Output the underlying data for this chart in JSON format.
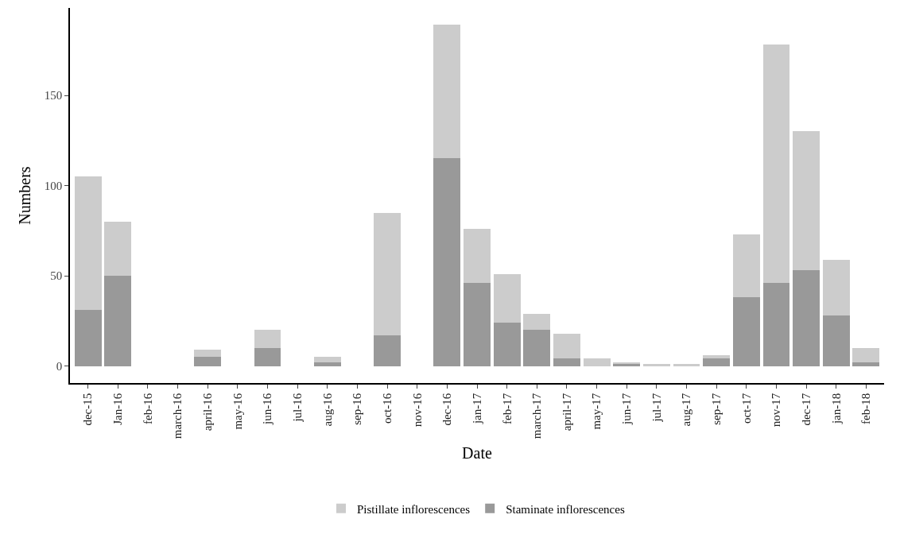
{
  "chart_data": {
    "type": "bar",
    "stacked": true,
    "xlabel": "Date",
    "ylabel": "Numbers",
    "categories": [
      "dec-15",
      "Jan-16",
      "feb-16",
      "march-16",
      "april-16",
      "may-16",
      "jun-16",
      "jul-16",
      "aug-16",
      "sep-16",
      "oct-16",
      "nov-16",
      "dec-16",
      "jan-17",
      "feb-17",
      "march-17",
      "april-17",
      "may-17",
      "jun-17",
      "jul-17",
      "aug-17",
      "sep-17",
      "oct-17",
      "nov-17",
      "dec-17",
      "jan-18",
      "feb-18"
    ],
    "series": [
      {
        "name": "Staminate inflorescences",
        "color": "#999999",
        "values": [
          31,
          50,
          0,
          0,
          5,
          0,
          10,
          0,
          2,
          0,
          17,
          0,
          115,
          46,
          24,
          20,
          4,
          0,
          1,
          0,
          0,
          4,
          38,
          46,
          53,
          28,
          2
        ]
      },
      {
        "name": "Pistillate inflorescences",
        "color": "#cccccc",
        "values": [
          74,
          30,
          0,
          0,
          4,
          0,
          10,
          0,
          3,
          0,
          68,
          0,
          74,
          30,
          27,
          9,
          14,
          4,
          1,
          1,
          1,
          2,
          35,
          132,
          77,
          31,
          8
        ]
      }
    ],
    "ylim": [
      -9.45,
      198.45
    ],
    "yticks": [
      0,
      50,
      100,
      150
    ],
    "grid": false,
    "legend": "bottom"
  }
}
